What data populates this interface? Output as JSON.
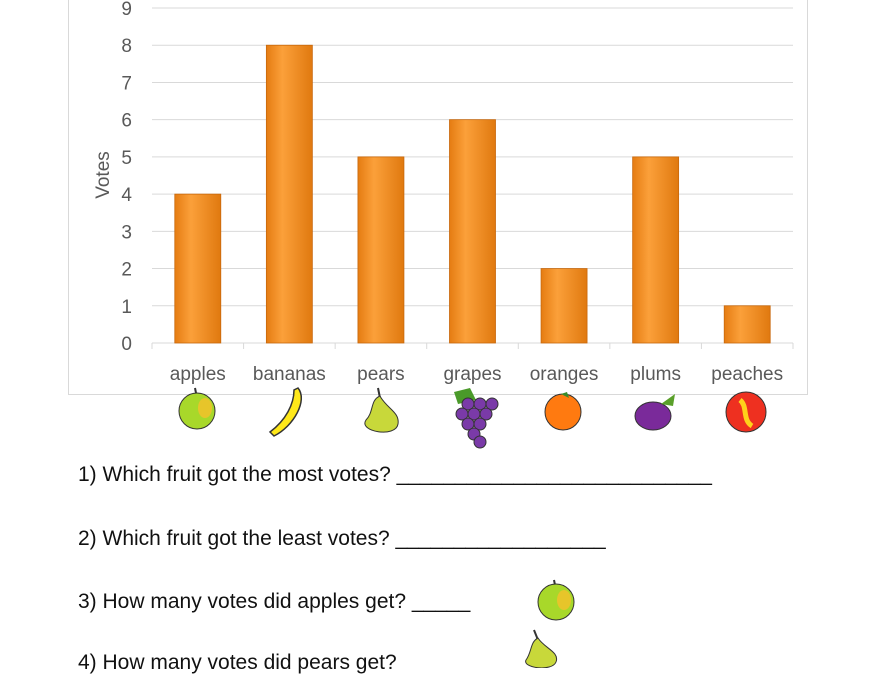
{
  "chart_data": {
    "type": "bar",
    "title": "",
    "xlabel": "",
    "ylabel": "Votes",
    "categories": [
      "apples",
      "bananas",
      "pears",
      "grapes",
      "oranges",
      "plums",
      "peaches"
    ],
    "values": [
      4,
      8,
      5,
      6,
      2,
      5,
      1
    ],
    "ylim": [
      0,
      9
    ],
    "yticks": [
      "0",
      "1",
      "2",
      "3",
      "4",
      "5",
      "6",
      "7",
      "8",
      "9"
    ],
    "grid": true,
    "bar_color": "#f7941d",
    "category_icons": [
      "apple-icon",
      "banana-icon",
      "pear-icon",
      "grapes-icon",
      "orange-icon",
      "plum-icon",
      "peach-icon"
    ]
  },
  "questions": [
    {
      "text": "1) Which fruit got the most votes? ___________________________"
    },
    {
      "text": "2) Which fruit got the least votes? __________________"
    },
    {
      "text": "3) How many votes did apples get? _____",
      "icon": "apple-icon"
    },
    {
      "text": "4) How many votes did pears get?",
      "icon": "pear-icon"
    }
  ]
}
